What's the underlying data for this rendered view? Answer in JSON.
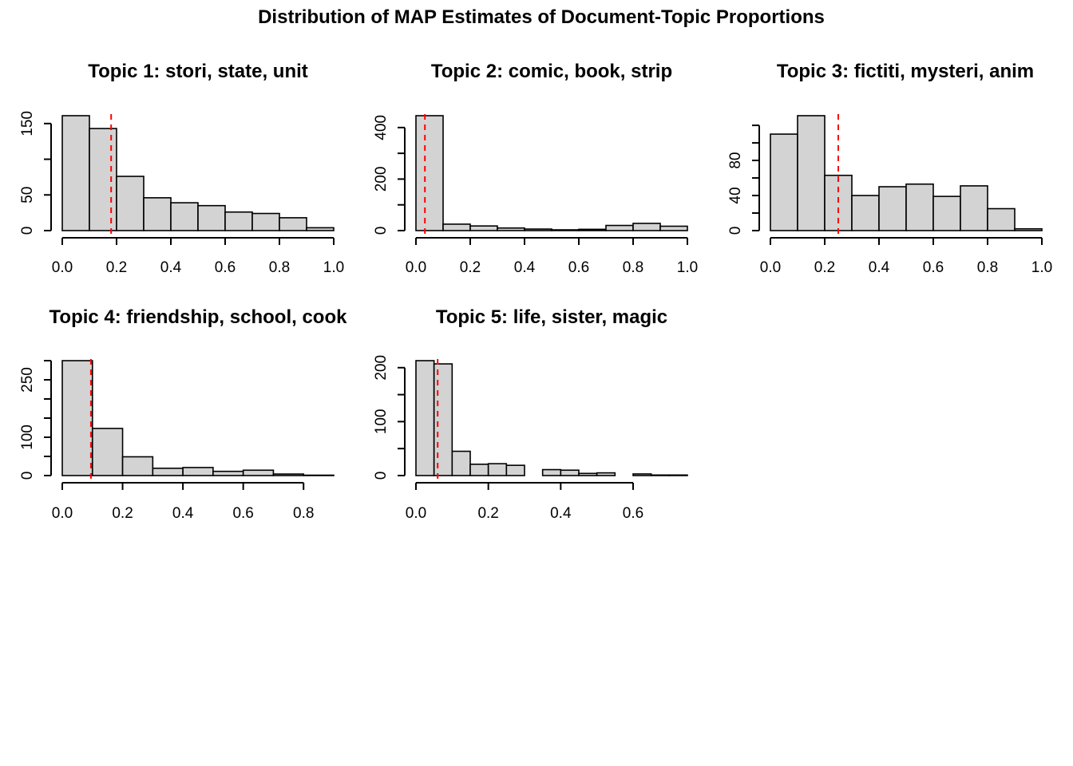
{
  "title": "Distribution of MAP Estimates of Document-Topic Proportions",
  "colors": {
    "bar_fill": "#d3d3d3",
    "bar_stroke": "#000000",
    "reference_line": "#ff0000"
  },
  "chart_data": [
    {
      "type": "bar",
      "title": "Topic 1: stori, state, unit",
      "xlabel": "",
      "ylabel": "",
      "bin_edges": [
        0.0,
        0.1,
        0.2,
        0.3,
        0.4,
        0.5,
        0.6,
        0.7,
        0.8,
        0.9,
        1.0
      ],
      "values": [
        161,
        143,
        76,
        46,
        39,
        35,
        26,
        24,
        18,
        4
      ],
      "xlim": [
        0.0,
        1.0
      ],
      "ylim": [
        0,
        161
      ],
      "x_ticks": [
        0.0,
        0.2,
        0.4,
        0.6,
        0.8,
        1.0
      ],
      "x_tick_labels": [
        "0.0",
        "0.2",
        "0.4",
        "0.6",
        "0.8",
        "1.0"
      ],
      "y_ticks": [
        0,
        50,
        100,
        150
      ],
      "y_tick_labels": [
        "0",
        "50",
        "",
        "150"
      ],
      "reference_line_x": 0.18
    },
    {
      "type": "bar",
      "title": "Topic 2: comic, book, strip",
      "xlabel": "",
      "ylabel": "",
      "bin_edges": [
        0.0,
        0.1,
        0.2,
        0.3,
        0.4,
        0.5,
        0.6,
        0.7,
        0.8,
        0.9,
        1.0
      ],
      "values": [
        446,
        25,
        18,
        10,
        6,
        3,
        5,
        20,
        28,
        17
      ],
      "xlim": [
        0.0,
        1.0
      ],
      "ylim": [
        0,
        446
      ],
      "x_ticks": [
        0.0,
        0.2,
        0.4,
        0.6,
        0.8,
        1.0
      ],
      "x_tick_labels": [
        "0.0",
        "0.2",
        "0.4",
        "0.6",
        "0.8",
        "1.0"
      ],
      "y_ticks": [
        0,
        100,
        200,
        300,
        400
      ],
      "y_tick_labels": [
        "0",
        "",
        "200",
        "",
        "400"
      ],
      "reference_line_x": 0.033
    },
    {
      "type": "bar",
      "title": "Topic 3: fictiti, mysteri, anim",
      "xlabel": "",
      "ylabel": "",
      "bin_edges": [
        0.0,
        0.1,
        0.2,
        0.3,
        0.4,
        0.5,
        0.6,
        0.7,
        0.8,
        0.9,
        1.0
      ],
      "values": [
        110,
        131,
        63,
        40,
        50,
        53,
        39,
        51,
        25,
        2
      ],
      "xlim": [
        0.0,
        1.0
      ],
      "ylim": [
        0,
        131
      ],
      "x_ticks": [
        0.0,
        0.2,
        0.4,
        0.6,
        0.8,
        1.0
      ],
      "x_tick_labels": [
        "0.0",
        "0.2",
        "0.4",
        "0.6",
        "0.8",
        "1.0"
      ],
      "y_ticks": [
        0,
        20,
        40,
        60,
        80,
        100,
        120
      ],
      "y_tick_labels": [
        "0",
        "",
        "40",
        "",
        "80",
        "",
        ""
      ],
      "reference_line_x": 0.25
    },
    {
      "type": "bar",
      "title": "Topic 4: friendship, school, cook",
      "xlabel": "",
      "ylabel": "",
      "bin_edges": [
        0.0,
        0.1,
        0.2,
        0.3,
        0.4,
        0.5,
        0.6,
        0.7,
        0.8,
        0.9
      ],
      "values": [
        300,
        123,
        49,
        19,
        21,
        11,
        14,
        4,
        1
      ],
      "xlim": [
        0.0,
        0.9
      ],
      "ylim": [
        0,
        300
      ],
      "x_ticks": [
        0.0,
        0.2,
        0.4,
        0.6,
        0.8
      ],
      "x_tick_labels": [
        "0.0",
        "0.2",
        "0.4",
        "0.6",
        "0.8"
      ],
      "y_ticks": [
        0,
        50,
        100,
        150,
        200,
        250,
        300
      ],
      "y_tick_labels": [
        "0",
        "",
        "100",
        "",
        "",
        "250",
        ""
      ],
      "reference_line_x": 0.095
    },
    {
      "type": "bar",
      "title": "Topic 5: life, sister, magic",
      "xlabel": "",
      "ylabel": "",
      "bin_edges": [
        0.0,
        0.05,
        0.1,
        0.15,
        0.2,
        0.25,
        0.3,
        0.35,
        0.4,
        0.45,
        0.5,
        0.55,
        0.6,
        0.65,
        0.7,
        0.75
      ],
      "values": [
        213,
        207,
        45,
        21,
        22,
        19,
        0,
        11,
        10,
        4,
        5,
        0,
        3,
        1,
        1
      ],
      "xlim": [
        0.0,
        0.75
      ],
      "ylim": [
        0,
        213
      ],
      "x_ticks": [
        0.0,
        0.2,
        0.4,
        0.6
      ],
      "x_tick_labels": [
        "0.0",
        "0.2",
        "0.4",
        "0.6"
      ],
      "y_ticks": [
        0,
        50,
        100,
        150,
        200
      ],
      "y_tick_labels": [
        "0",
        "",
        "100",
        "",
        "200"
      ],
      "reference_line_x": 0.06
    }
  ]
}
